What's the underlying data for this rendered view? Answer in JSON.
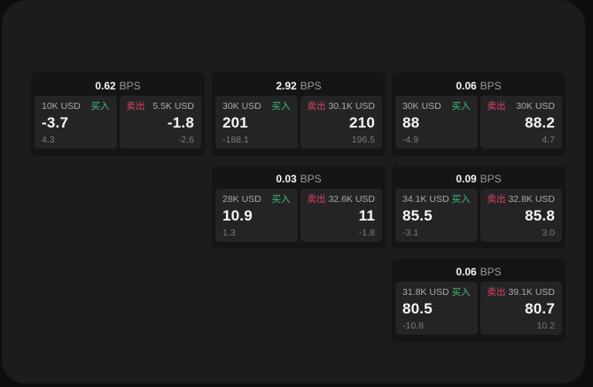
{
  "labels": {
    "bps_unit": "BPS",
    "buy": "买入",
    "sell": "卖出"
  },
  "colors": {
    "panel_bg": "#1c1c1e",
    "card_bg": "#151516",
    "pane_bg": "#242426",
    "buy": "#3fbe76",
    "sell": "#db4663",
    "size_label": "#aaaaae",
    "sub_value": "#7b7b7f",
    "dim_label": "#98989c"
  },
  "cards": [
    {
      "bps": "0.62",
      "buy_size": "10K USD",
      "buy_price": "-3.7",
      "buy_sub": "4.3",
      "sell_size": "5.5K USD",
      "sell_price": "-1.8",
      "sell_sub": "-2.6"
    },
    {
      "bps": "2.92",
      "buy_size": "30K USD",
      "buy_price": "201",
      "buy_sub": "-188.1",
      "sell_size": "30.1K USD",
      "sell_price": "210",
      "sell_sub": "196.5"
    },
    {
      "bps": "0.06",
      "buy_size": "30K USD",
      "buy_price": "88",
      "buy_sub": "-4.9",
      "sell_size": "30K USD",
      "sell_price": "88.2",
      "sell_sub": "4.7"
    },
    {
      "bps": "0.03",
      "buy_size": "28K USD",
      "buy_price": "10.9",
      "buy_sub": "1.3",
      "sell_size": "32.6K USD",
      "sell_price": "11",
      "sell_sub": "-1.8"
    },
    {
      "bps": "0.09",
      "buy_size": "34.1K USD",
      "buy_price": "85.5",
      "buy_sub": "-3.1",
      "sell_size": "32.8K USD",
      "sell_price": "85.8",
      "sell_sub": "3.0"
    },
    {
      "bps": "0.06",
      "buy_size": "31.8K USD",
      "buy_price": "80.5",
      "buy_sub": "-10.8",
      "sell_size": "39.1K USD",
      "sell_price": "80.7",
      "sell_sub": "10.2"
    }
  ]
}
